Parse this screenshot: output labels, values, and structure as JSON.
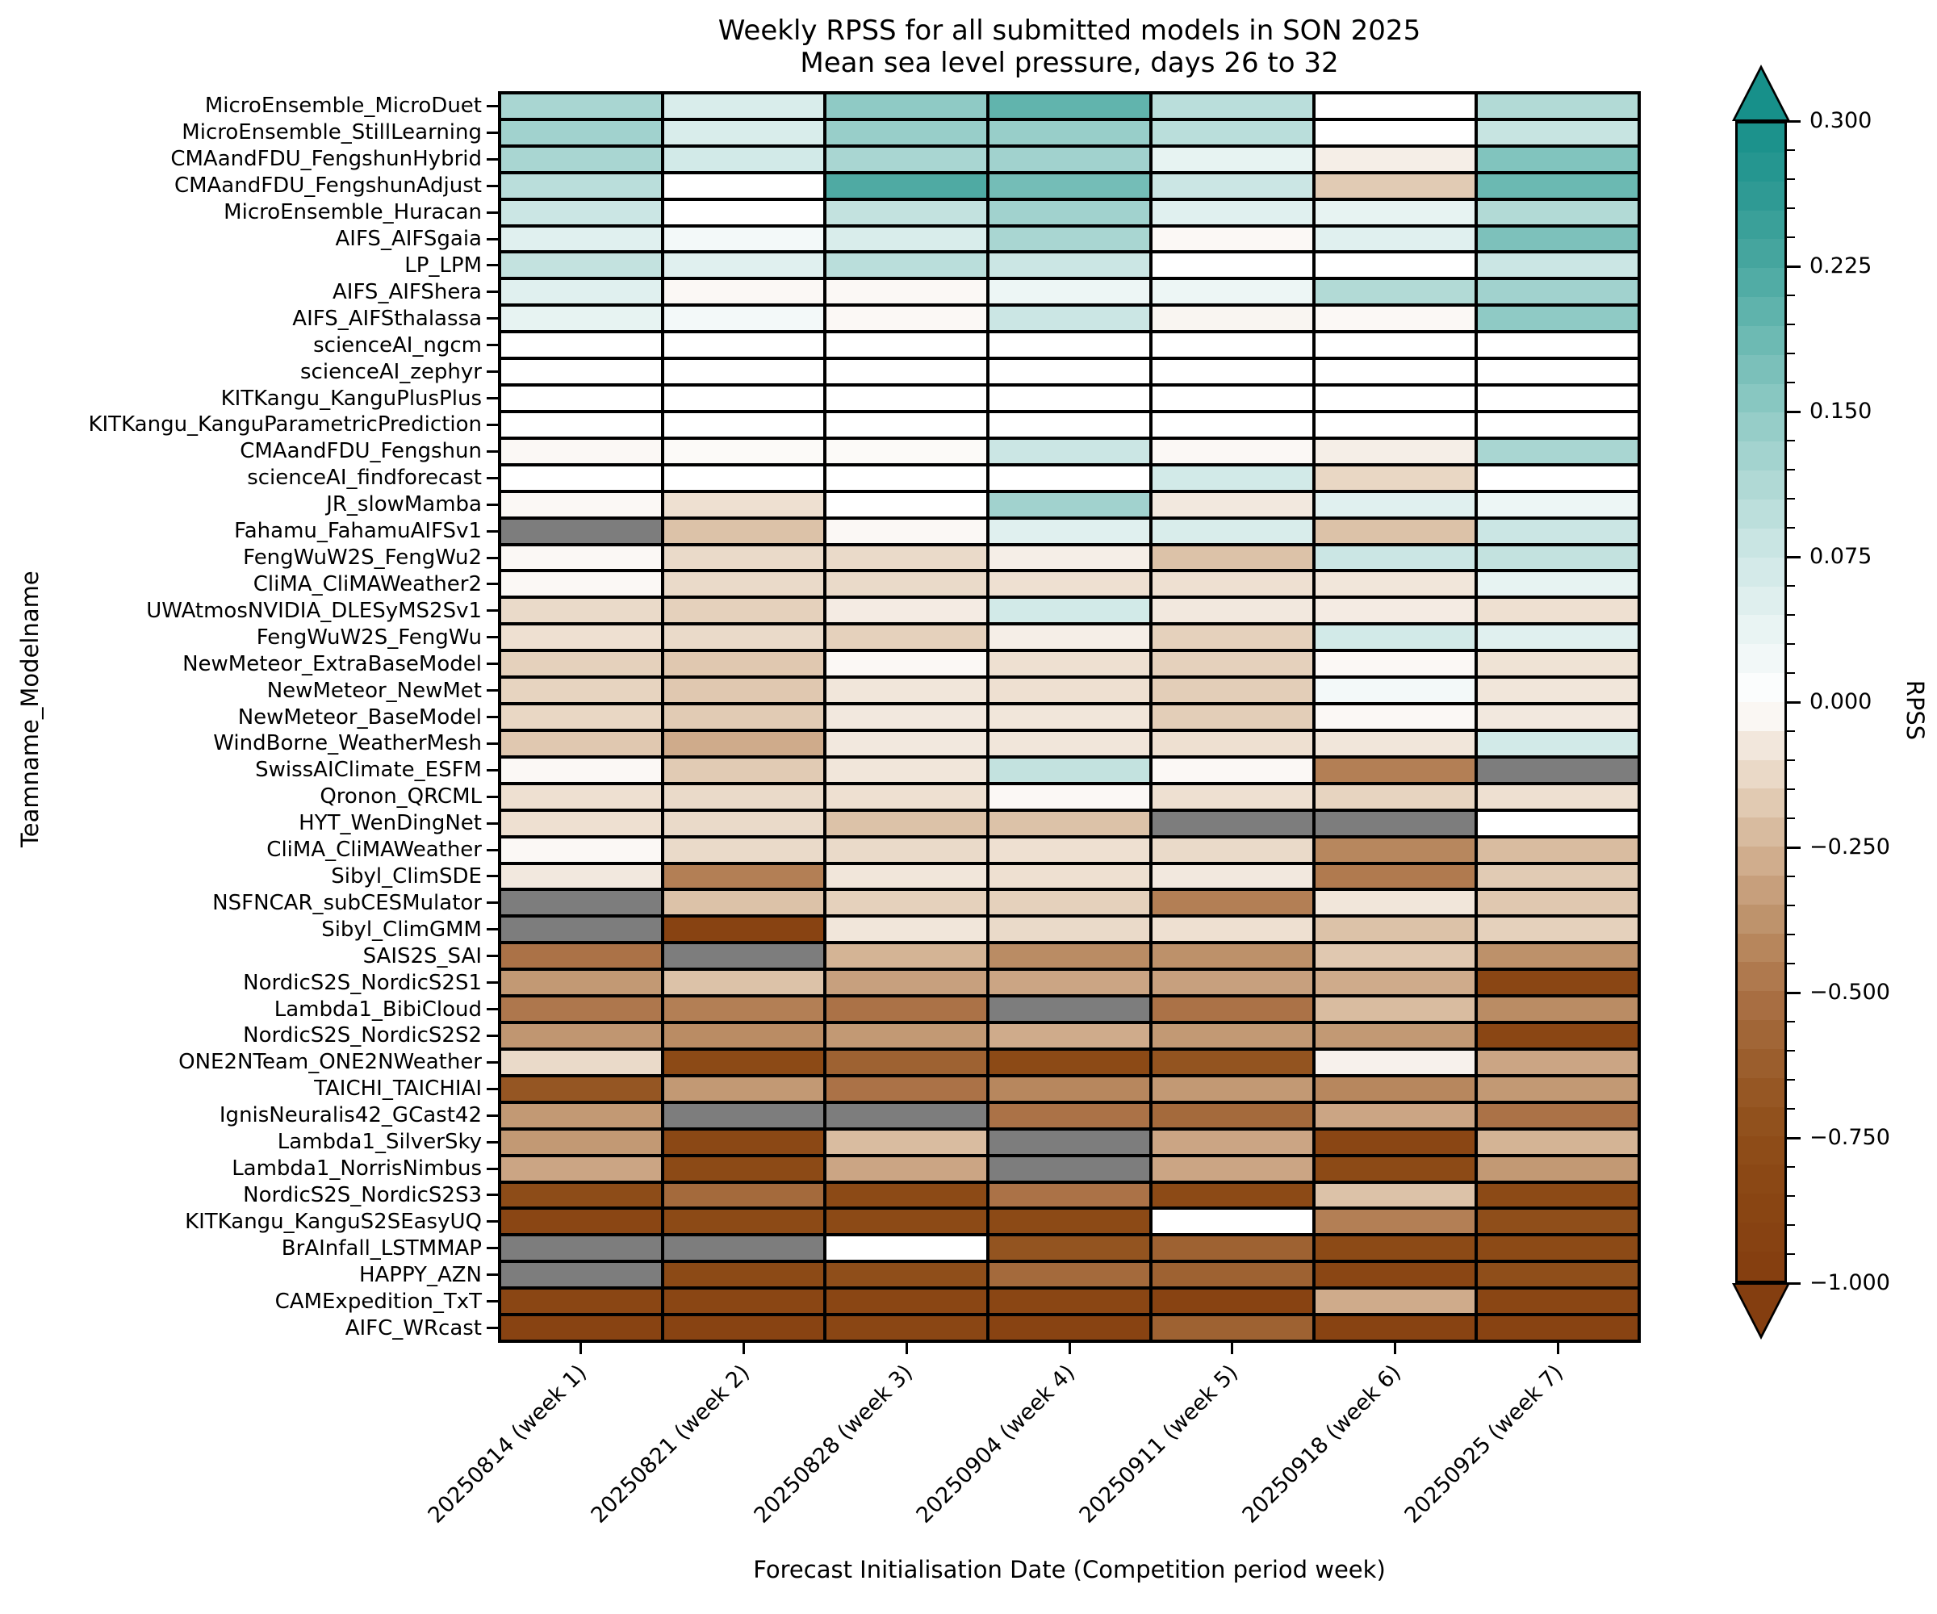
{
  "title": {
    "line1": "Weekly RPSS for all submitted models in SON 2025",
    "line2": "Mean sea level pressure, days 26 to 32"
  },
  "x_axis": {
    "label": "Forecast Initialisation Date (Competition period week)",
    "ticks": [
      "20250814 (week 1)",
      "20250821 (week 2)",
      "20250828 (week 3)",
      "20250904 (week 4)",
      "20250911 (week 5)",
      "20250918 (week 6)",
      "20250925 (week 7)"
    ]
  },
  "y_axis": {
    "label": "Teamname_Modelname"
  },
  "colorbar": {
    "label": "RPSS",
    "vmin": -1.0,
    "vcenter": 0.0,
    "vmax": 0.3,
    "major_tick_values": [
      0.3,
      0.225,
      0.15,
      0.075,
      0.0,
      -0.25,
      -0.5,
      -0.75,
      -1.0
    ],
    "major_tick_labels": [
      "0.300",
      "0.225",
      "0.150",
      "0.075",
      "0.000",
      "−0.250",
      "−0.500",
      "−0.750",
      "−1.000"
    ],
    "positive_step": 0.015,
    "negative_step": 0.05,
    "nan_color": "#7d7d7d",
    "grid_color": "#000000",
    "over_arrow_color": "#17908a",
    "under_arrow_color": "#843e10",
    "cmap_stops_positive": [
      [
        0,
        "#ffffff"
      ],
      [
        0.0375,
        "#e9f4f3"
      ],
      [
        0.075,
        "#cfe8e6"
      ],
      [
        0.1125,
        "#b0d9d5"
      ],
      [
        0.15,
        "#8fcac5"
      ],
      [
        0.1875,
        "#6dbab3"
      ],
      [
        0.225,
        "#4aa8a1"
      ],
      [
        0.2625,
        "#2f9a94"
      ],
      [
        0.3,
        "#17908a"
      ]
    ],
    "cmap_stops_negative": [
      [
        0,
        "#ffffff"
      ],
      [
        0.05,
        "#f5eee7"
      ],
      [
        0.1,
        "#eee0d1"
      ],
      [
        0.15,
        "#e5d1bc"
      ],
      [
        0.2,
        "#dcc2a8"
      ],
      [
        0.25,
        "#d4b495"
      ],
      [
        0.3,
        "#cba584"
      ],
      [
        0.35,
        "#c29974"
      ],
      [
        0.4,
        "#ba8c64"
      ],
      [
        0.45,
        "#b37f55"
      ],
      [
        0.5,
        "#ab7247"
      ],
      [
        0.55,
        "#a46a3c"
      ],
      [
        0.6,
        "#9e6232"
      ],
      [
        0.65,
        "#985a28"
      ],
      [
        0.7,
        "#935420"
      ],
      [
        0.75,
        "#8f4e1a"
      ],
      [
        0.8,
        "#8c4a16"
      ],
      [
        0.85,
        "#8a4614"
      ],
      [
        0.9,
        "#884312"
      ],
      [
        0.95,
        "#864011"
      ],
      [
        1,
        "#843e10"
      ]
    ]
  },
  "chart_data": {
    "type": "heatmap",
    "title": "Weekly RPSS for all submitted models in SON 2025 — Mean sea level pressure, days 26 to 32",
    "xlabel": "Forecast Initialisation Date (Competition period week)",
    "ylabel": "Teamname_Modelname",
    "legend_position": "right-colorbar",
    "grid": "black cell edges",
    "value_range": [
      -1.0,
      0.3
    ],
    "columns": [
      "20250814 (week 1)",
      "20250821 (week 2)",
      "20250828 (week 3)",
      "20250904 (week 4)",
      "20250911 (week 5)",
      "20250918 (week 6)",
      "20250925 (week 7)"
    ],
    "rows": [
      "MicroEnsemble_MicroDuet",
      "MicroEnsemble_StillLearning",
      "CMAandFDU_FengshunHybrid",
      "CMAandFDU_FengshunAdjust",
      "MicroEnsemble_Huracan",
      "AIFS_AIFSgaia",
      "LP_LPM",
      "AIFS_AIFShera",
      "AIFS_AIFSthalassa",
      "scienceAI_ngcm",
      "scienceAI_zephyr",
      "KITKangu_KanguPlusPlus",
      "KITKangu_KanguParametricPrediction",
      "CMAandFDU_Fengshun",
      "scienceAI_findforecast",
      "JR_slowMamba",
      "Fahamu_FahamuAIFSv1",
      "FengWuW2S_FengWu2",
      "CliMA_CliMAWeather2",
      "UWAtmosNVIDIA_DLESyMS2Sv1",
      "FengWuW2S_FengWu",
      "NewMeteor_ExtraBaseModel",
      "NewMeteor_NewMet",
      "NewMeteor_BaseModel",
      "WindBorne_WeatherMesh",
      "SwissAIClimate_ESFM",
      "Qronon_QRCML",
      "HYT_WenDingNet",
      "CliMA_CliMAWeather",
      "Sibyl_ClimSDE",
      "NSFNCAR_subCESMulator",
      "Sibyl_ClimGMM",
      "SAIS2S_SAI",
      "NordicS2S_NordicS2S1",
      "Lambda1_BibiCloud",
      "NordicS2S_NordicS2S2",
      "ONE2NTeam_ONE2NWeather",
      "TAICHI_TAICHIAI",
      "IgnisNeuralis42_GCast42",
      "Lambda1_SilverSky",
      "Lambda1_NorrisNimbus",
      "NordicS2S_NordicS2S3",
      "KITKangu_KanguS2SEasyUQ",
      "BrAInfall_LSTMMAP",
      "HAPPY_AZN",
      "CAMExpedition_TxT",
      "AIFC_WRcast"
    ],
    "values": [
      [
        0.12,
        0.06,
        0.15,
        0.2,
        0.1,
        0.0,
        0.11
      ],
      [
        0.13,
        0.06,
        0.14,
        0.14,
        0.1,
        0.0,
        0.085
      ],
      [
        0.12,
        0.07,
        0.12,
        0.13,
        0.04,
        -0.05,
        0.165
      ],
      [
        0.1,
        0.0,
        0.22,
        0.18,
        0.08,
        -0.17,
        0.19
      ],
      [
        0.08,
        0.0,
        0.09,
        0.13,
        0.05,
        0.04,
        0.11
      ],
      [
        0.05,
        0.02,
        0.06,
        0.12,
        -0.02,
        0.05,
        0.17
      ],
      [
        0.09,
        0.05,
        0.1,
        0.08,
        0.0,
        0.0,
        0.08
      ],
      [
        0.05,
        -0.02,
        -0.02,
        0.03,
        0.03,
        0.11,
        0.13
      ],
      [
        0.04,
        0.02,
        -0.02,
        0.08,
        -0.03,
        -0.02,
        0.15
      ],
      [
        0.0,
        0.0,
        0.0,
        0.0,
        0.0,
        0.0,
        0.0
      ],
      [
        0.0,
        0.0,
        0.0,
        0.0,
        0.0,
        0.0,
        0.0
      ],
      [
        0.0,
        0.0,
        0.0,
        0.0,
        0.0,
        0.0,
        0.0
      ],
      [
        0.0,
        0.0,
        0.0,
        0.0,
        0.0,
        0.0,
        0.0
      ],
      [
        -0.02,
        -0.015,
        -0.015,
        0.08,
        -0.02,
        -0.05,
        0.12
      ],
      [
        0.0,
        0.0,
        0.0,
        0.0,
        0.07,
        -0.13,
        0.0
      ],
      [
        -0.02,
        -0.1,
        0.0,
        0.13,
        -0.07,
        0.05,
        0.03
      ],
      [
        null,
        -0.2,
        -0.02,
        0.05,
        0.06,
        -0.2,
        0.08
      ],
      [
        -0.02,
        -0.12,
        -0.12,
        -0.05,
        -0.2,
        0.08,
        0.09
      ],
      [
        -0.02,
        -0.12,
        -0.12,
        -0.1,
        -0.1,
        -0.08,
        0.04
      ],
      [
        -0.12,
        -0.15,
        -0.06,
        0.07,
        -0.07,
        -0.06,
        -0.1
      ],
      [
        -0.1,
        -0.12,
        -0.15,
        -0.05,
        -0.15,
        0.07,
        0.05
      ],
      [
        -0.15,
        -0.18,
        -0.02,
        -0.1,
        -0.15,
        -0.02,
        -0.09
      ],
      [
        -0.14,
        -0.18,
        -0.08,
        -0.1,
        -0.16,
        0.02,
        -0.08
      ],
      [
        -0.13,
        -0.17,
        -0.07,
        -0.08,
        -0.16,
        -0.02,
        -0.07
      ],
      [
        -0.18,
        -0.28,
        -0.07,
        -0.08,
        -0.1,
        -0.08,
        0.07
      ],
      [
        -0.02,
        -0.17,
        -0.08,
        0.09,
        -0.02,
        -0.45,
        null
      ],
      [
        -0.1,
        -0.12,
        -0.1,
        -0.02,
        -0.1,
        -0.14,
        -0.1
      ],
      [
        -0.1,
        -0.12,
        -0.2,
        -0.2,
        null,
        null,
        0.0
      ],
      [
        -0.02,
        -0.12,
        -0.12,
        -0.1,
        -0.12,
        -0.42,
        -0.22
      ],
      [
        -0.07,
        -0.45,
        -0.08,
        -0.1,
        -0.07,
        -0.47,
        -0.17
      ],
      [
        null,
        -0.2,
        -0.15,
        -0.15,
        -0.45,
        -0.08,
        -0.18
      ],
      [
        null,
        -0.9,
        -0.08,
        -0.12,
        -0.1,
        -0.2,
        -0.15
      ],
      [
        -0.5,
        null,
        -0.25,
        -0.4,
        -0.38,
        -0.18,
        -0.38
      ],
      [
        -0.35,
        -0.2,
        -0.32,
        -0.3,
        -0.32,
        -0.28,
        -0.85
      ],
      [
        -0.48,
        -0.45,
        -0.5,
        null,
        -0.5,
        -0.22,
        -0.4
      ],
      [
        -0.36,
        -0.4,
        -0.35,
        -0.28,
        -0.35,
        -0.35,
        -0.85
      ],
      [
        -0.12,
        -0.8,
        -0.6,
        -0.8,
        -0.7,
        -0.04,
        -0.3
      ],
      [
        -0.68,
        -0.35,
        -0.5,
        -0.42,
        -0.35,
        -0.42,
        -0.35
      ],
      [
        -0.35,
        null,
        null,
        -0.5,
        -0.55,
        -0.3,
        -0.5
      ],
      [
        -0.35,
        -0.82,
        -0.22,
        null,
        -0.3,
        -0.85,
        -0.25
      ],
      [
        -0.3,
        -0.8,
        -0.3,
        null,
        -0.3,
        -0.8,
        -0.35
      ],
      [
        -0.78,
        -0.55,
        -0.8,
        -0.5,
        -0.8,
        -0.2,
        -0.8
      ],
      [
        -0.85,
        -0.8,
        -0.8,
        -0.8,
        0.0,
        -0.45,
        -0.75
      ],
      [
        null,
        null,
        0.0,
        -0.7,
        -0.6,
        -0.8,
        -0.8
      ],
      [
        null,
        -0.8,
        -0.75,
        -0.55,
        -0.6,
        -0.85,
        -0.75
      ],
      [
        -0.85,
        -0.85,
        -0.85,
        -0.85,
        -0.9,
        -0.28,
        -0.85
      ],
      [
        -0.9,
        -0.9,
        -0.85,
        -0.9,
        -0.6,
        -0.9,
        -0.9
      ]
    ]
  }
}
